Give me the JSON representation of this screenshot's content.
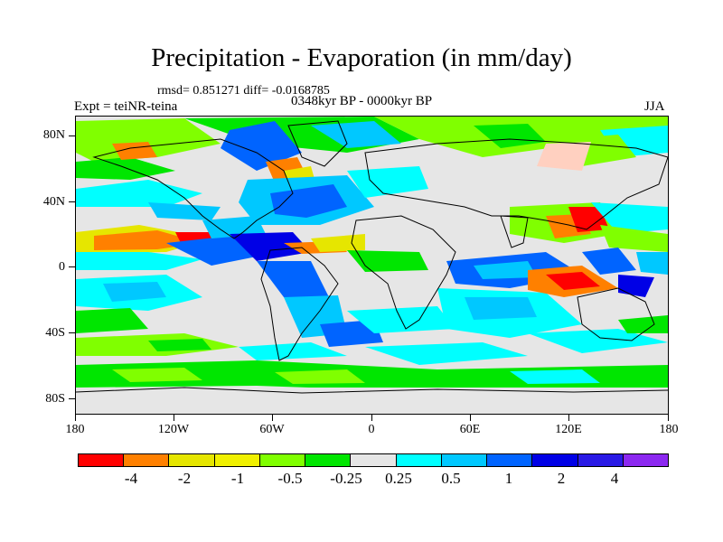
{
  "title": "Precipitation - Evaporation (in mm/day)",
  "stats": "rmsd= 0.851271 diff= -0.0168785",
  "period": "0348kyr BP - 0000kyr BP",
  "expt": "Expt = teiNR-teina",
  "season": "JJA",
  "y_axis": [
    "80N",
    "40N",
    "0",
    "40S",
    "80S"
  ],
  "x_axis": [
    "180",
    "120W",
    "60W",
    "0",
    "60E",
    "120E",
    "180"
  ],
  "colorbar": {
    "colors": [
      "#ff0000",
      "#ff8000",
      "#e6e600",
      "#f0f000",
      "#80ff00",
      "#00e600",
      "#e6e6e6",
      "#00ffff",
      "#00c8ff",
      "#0064ff",
      "#0000e6",
      "#2a1ae6",
      "#8c28f0"
    ],
    "labels": [
      "-4",
      "-2",
      "-1",
      "-0.5",
      "-0.25",
      "0.25",
      "0.5",
      "1",
      "2",
      "4"
    ]
  }
}
